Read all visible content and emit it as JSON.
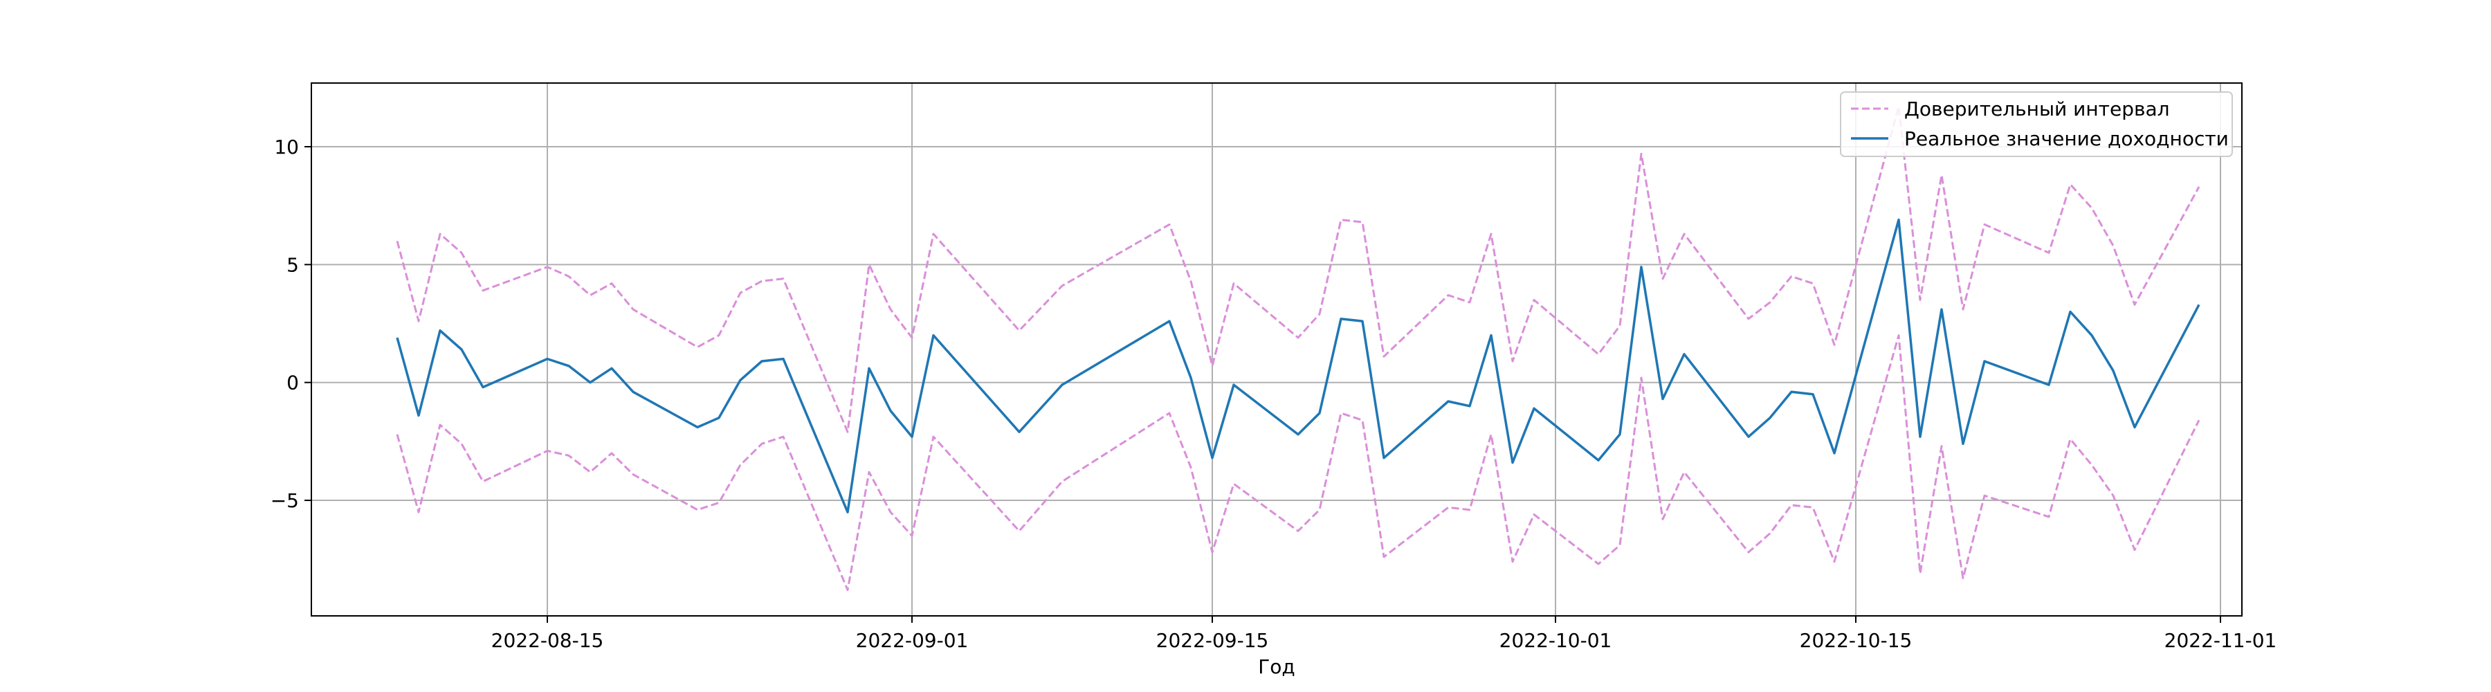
{
  "chart_data": {
    "type": "line",
    "xlabel": "Год",
    "ylabel": "",
    "x_ticks": [
      "2022-08-15",
      "2022-09-01",
      "2022-09-15",
      "2022-10-01",
      "2022-10-15",
      "2022-11-01"
    ],
    "y_ticks": [
      -5,
      0,
      5,
      10
    ],
    "y_tick_labels": [
      "−5",
      "0",
      "5",
      "10"
    ],
    "xlim": [
      "2022-08-04",
      "2022-11-02"
    ],
    "ylim": [
      -9.9,
      12.7
    ],
    "grid": true,
    "legend": {
      "position": "top-right"
    },
    "x": [
      "2022-08-08",
      "2022-08-09",
      "2022-08-10",
      "2022-08-11",
      "2022-08-12",
      "2022-08-15",
      "2022-08-16",
      "2022-08-17",
      "2022-08-18",
      "2022-08-19",
      "2022-08-22",
      "2022-08-23",
      "2022-08-24",
      "2022-08-25",
      "2022-08-26",
      "2022-08-29",
      "2022-08-30",
      "2022-08-31",
      "2022-09-01",
      "2022-09-02",
      "2022-09-06",
      "2022-09-08",
      "2022-09-13",
      "2022-09-14",
      "2022-09-15",
      "2022-09-16",
      "2022-09-19",
      "2022-09-20",
      "2022-09-21",
      "2022-09-22",
      "2022-09-23",
      "2022-09-26",
      "2022-09-27",
      "2022-09-28",
      "2022-09-29",
      "2022-09-30",
      "2022-10-03",
      "2022-10-04",
      "2022-10-05",
      "2022-10-06",
      "2022-10-07",
      "2022-10-10",
      "2022-10-11",
      "2022-10-12",
      "2022-10-13",
      "2022-10-14",
      "2022-10-17",
      "2022-10-18",
      "2022-10-19",
      "2022-10-20",
      "2022-10-21",
      "2022-10-24",
      "2022-10-25",
      "2022-10-26",
      "2022-10-27",
      "2022-10-28",
      "2022-10-31"
    ],
    "series": [
      {
        "name": "Доверительный интервал",
        "color": "#da8fd9",
        "style": "dashed",
        "upper": [
          6.0,
          2.6,
          6.3,
          5.5,
          3.9,
          4.9,
          4.5,
          3.7,
          4.2,
          3.1,
          1.5,
          2.0,
          3.8,
          4.3,
          4.4,
          -2.1,
          5.0,
          3.1,
          1.9,
          6.3,
          2.2,
          4.1,
          6.7,
          4.3,
          0.7,
          4.2,
          1.9,
          2.9,
          6.9,
          6.8,
          1.1,
          3.7,
          3.4,
          6.3,
          0.9,
          3.5,
          1.2,
          2.4,
          9.7,
          4.4,
          6.3,
          2.7,
          3.4,
          4.5,
          4.2,
          1.6,
          11.7,
          3.5,
          8.8,
          3.1,
          6.7,
          5.5,
          8.4,
          7.4,
          5.8,
          3.3,
          8.3
        ],
        "lower": [
          -2.2,
          -5.5,
          -1.8,
          -2.6,
          -4.2,
          -2.9,
          -3.1,
          -3.8,
          -3.0,
          -3.9,
          -5.4,
          -5.1,
          -3.5,
          -2.6,
          -2.3,
          -8.8,
          -3.8,
          -5.5,
          -6.5,
          -2.3,
          -6.3,
          -4.2,
          -1.3,
          -3.6,
          -7.2,
          -4.3,
          -6.3,
          -5.4,
          -1.3,
          -1.6,
          -7.4,
          -5.3,
          -5.4,
          -2.2,
          -7.6,
          -5.6,
          -7.7,
          -6.9,
          0.2,
          -5.8,
          -3.8,
          -7.2,
          -6.4,
          -5.2,
          -5.3,
          -7.6,
          2.0,
          -8.1,
          -2.7,
          -8.3,
          -4.8,
          -5.7,
          -2.4,
          -3.5,
          -4.8,
          -7.1,
          -1.6
        ]
      },
      {
        "name": "Реальное значение доходности",
        "color": "#1f77b4",
        "style": "solid",
        "values": [
          1.9,
          -1.4,
          2.2,
          1.4,
          -0.2,
          1.0,
          0.7,
          0.0,
          0.6,
          -0.4,
          -1.9,
          -1.5,
          0.1,
          0.9,
          1.0,
          -5.5,
          0.6,
          -1.2,
          -2.3,
          2.0,
          -2.1,
          -0.1,
          2.6,
          0.2,
          -3.2,
          -0.1,
          -2.2,
          -1.3,
          2.7,
          2.6,
          -3.2,
          -0.8,
          -1.0,
          2.0,
          -3.4,
          -1.1,
          -3.3,
          -2.2,
          4.9,
          -0.7,
          1.2,
          -2.3,
          -1.5,
          -0.4,
          -0.5,
          -3.0,
          6.9,
          -2.3,
          3.1,
          -2.6,
          0.9,
          -0.1,
          3.0,
          2.0,
          0.5,
          -1.9,
          3.3
        ]
      }
    ]
  }
}
